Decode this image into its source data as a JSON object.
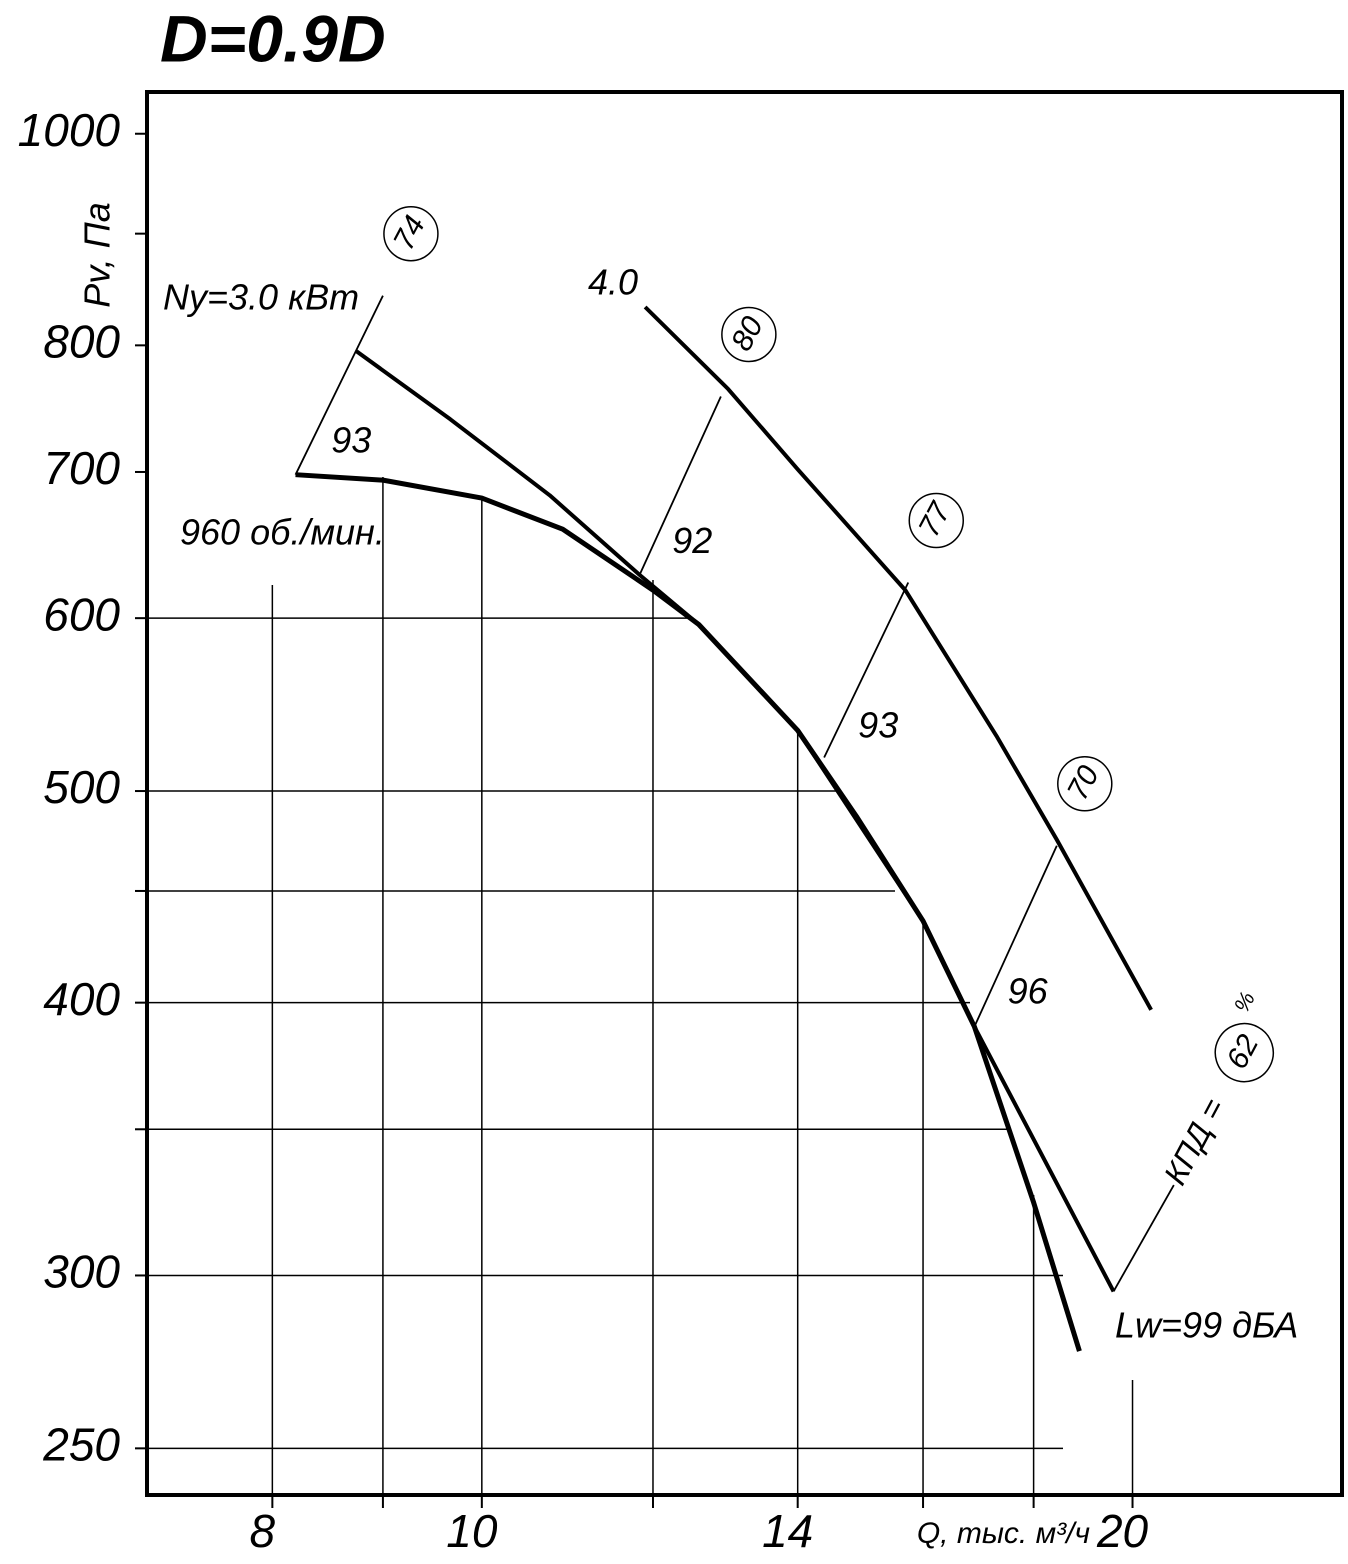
{
  "chart_data": {
    "type": "line",
    "title": "D=0.9D",
    "x_label": "Q, тыс. м³/ч",
    "y_label": "Pv, Па",
    "xscale": "log",
    "yscale": "log",
    "xlim": [
      7,
      25
    ],
    "ylim": [
      238,
      1045
    ],
    "xticks": [
      8,
      10,
      14,
      20
    ],
    "xminor": [
      9,
      12,
      16,
      18
    ],
    "yticks": [
      250,
      300,
      400,
      500,
      600,
      700,
      800,
      1000
    ],
    "yminor": [
      350,
      450,
      900
    ],
    "series": [
      {
        "name": "960 об./мин.",
        "color": "#000000",
        "x": [
          8.2,
          9.0,
          10,
          10.9,
          12,
          12.6,
          14,
          14.9,
          16,
          16.9,
          18,
          18.9
        ],
        "values": [
          698,
          694,
          681,
          659,
          618,
          596,
          533,
          487,
          436,
          390,
          324,
          277
        ]
      },
      {
        "name": "Ny=3.0 кВт",
        "color": "#000000",
        "x": [
          8.75,
          9.67,
          10.75,
          11.83,
          12.6,
          14,
          16,
          16.9,
          19.6
        ],
        "values": [
          795,
          740,
          683,
          628,
          596,
          533,
          436,
          390,
          295
        ]
      },
      {
        "name": "4.0",
        "color": "#000000",
        "x": [
          11.9,
          13,
          14,
          15.7,
          17.3,
          18.45,
          20.4
        ],
        "values": [
          833,
          764,
          702,
          618,
          530,
          475,
          397
        ]
      }
    ],
    "efficiency_lines": [
      {
        "x": [
          8.2,
          9.0
        ],
        "y": [
          698,
          843
        ],
        "efficiency": 74,
        "noise": 93
      },
      {
        "x": [
          11.83,
          12.9
        ],
        "y": [
          628,
          758
        ],
        "efficiency": 80,
        "noise": 92
      },
      {
        "x": [
          14.4,
          15.75
        ],
        "y": [
          518,
          623
        ],
        "efficiency": 77,
        "noise": 93
      },
      {
        "x": [
          16.9,
          18.45
        ],
        "y": [
          390,
          472
        ],
        "efficiency": 70,
        "noise": 96
      },
      {
        "x": [
          19.6,
          20.9
        ],
        "y": [
          295,
          330
        ],
        "efficiency": 62
      }
    ],
    "efficiency_label": "КПД =",
    "efficiency_unit": "%",
    "noise_label": "Lw=99 дБА"
  }
}
